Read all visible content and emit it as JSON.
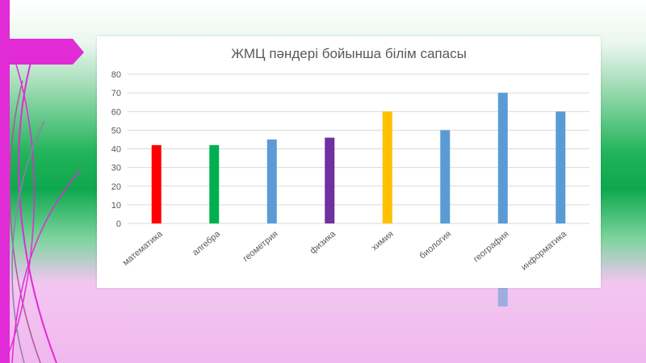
{
  "chart_data": {
    "type": "bar",
    "title": "ЖМЦ пәндері бойынша білім сапасы",
    "categories": [
      "математика",
      "алгебра",
      "геометрия",
      "физика",
      "химия",
      "биология",
      "география",
      "информатика"
    ],
    "values": [
      42,
      42,
      45,
      46,
      60,
      50,
      70,
      60
    ],
    "colors": [
      "#ff0000",
      "#00b050",
      "#5b9bd5",
      "#7030a0",
      "#ffc000",
      "#5b9bd5",
      "#5b9bd5",
      "#5b9bd5"
    ],
    "ylim": [
      0,
      80
    ],
    "yticks": [
      0,
      10,
      20,
      30,
      40,
      50,
      60,
      70,
      80
    ],
    "grid": true,
    "legend": "none"
  },
  "theme": {
    "accent": "#e02bd6",
    "gridline": "#d9d9d9",
    "text": "#595959"
  }
}
